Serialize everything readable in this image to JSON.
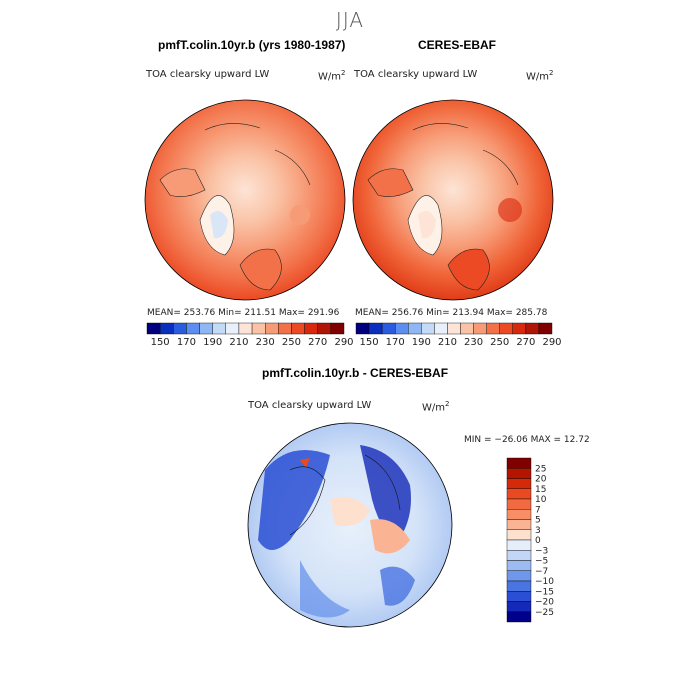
{
  "season": "JJA",
  "panels": [
    {
      "title": "pmfT.colin.10yr.b (yrs 1980-1987)",
      "variable": "TOA clearsky upward LW",
      "units": "W/m",
      "units_exp": "2",
      "stats": "MEAN= 253.76   Min= 211.51   Max= 291.96"
    },
    {
      "title": "CERES-EBAF",
      "variable": "TOA clearsky upward LW",
      "units": "W/m",
      "units_exp": "2",
      "stats": "MEAN= 256.76   Min= 213.94   Max= 285.78"
    }
  ],
  "diff_panel": {
    "title": "pmfT.colin.10yr.b - CERES-EBAF",
    "variable": "TOA clearsky upward LW",
    "units": "W/m",
    "units_exp": "2",
    "stats": "MIN = −26.06  MAX =   12.72"
  },
  "chart_data": [
    {
      "type": "heatmap",
      "projection": "north polar stereographic",
      "title": "pmfT.colin.10yr.b (yrs 1980-1987)",
      "mean": 253.76,
      "min": 211.51,
      "max": 291.96,
      "colorbar": {
        "orientation": "horizontal",
        "ticks": [
          150,
          170,
          190,
          210,
          230,
          250,
          270,
          290
        ],
        "colors": [
          "#00007f",
          "#0a2fbf",
          "#2a5ce0",
          "#5b8ef0",
          "#8fb6f5",
          "#c4dbf7",
          "#e8f1fb",
          "#fde4d6",
          "#fac3a6",
          "#f79b76",
          "#f27149",
          "#eb4a24",
          "#d8280d",
          "#b01506",
          "#800000"
        ]
      }
    },
    {
      "type": "heatmap",
      "projection": "north polar stereographic",
      "title": "CERES-EBAF",
      "mean": 256.76,
      "min": 213.94,
      "max": 285.78,
      "colorbar": {
        "orientation": "horizontal",
        "ticks": [
          150,
          170,
          190,
          210,
          230,
          250,
          270,
          290
        ],
        "colors": [
          "#00007f",
          "#0a2fbf",
          "#2a5ce0",
          "#5b8ef0",
          "#8fb6f5",
          "#c4dbf7",
          "#e8f1fb",
          "#fde4d6",
          "#fac3a6",
          "#f79b76",
          "#f27149",
          "#eb4a24",
          "#d8280d",
          "#b01506",
          "#800000"
        ]
      }
    },
    {
      "type": "heatmap",
      "projection": "north polar stereographic",
      "title": "pmfT.colin.10yr.b - CERES-EBAF",
      "min": -26.06,
      "max": 12.72,
      "colorbar": {
        "orientation": "vertical",
        "ticks": [
          "25",
          "20",
          "15",
          "10",
          "7",
          "5",
          "3",
          "0",
          "−3",
          "−5",
          "−7",
          "−10",
          "−15",
          "−20",
          "−25"
        ],
        "colors": [
          "#800000",
          "#b51400",
          "#d42a0a",
          "#ea4a22",
          "#f26a40",
          "#f78e65",
          "#fab493",
          "#fde0cd",
          "#e6eefa",
          "#c3d6f6",
          "#9bbbf2",
          "#6f98ec",
          "#4a74e2",
          "#2a4fd4",
          "#1429b8",
          "#00008a"
        ]
      }
    }
  ]
}
